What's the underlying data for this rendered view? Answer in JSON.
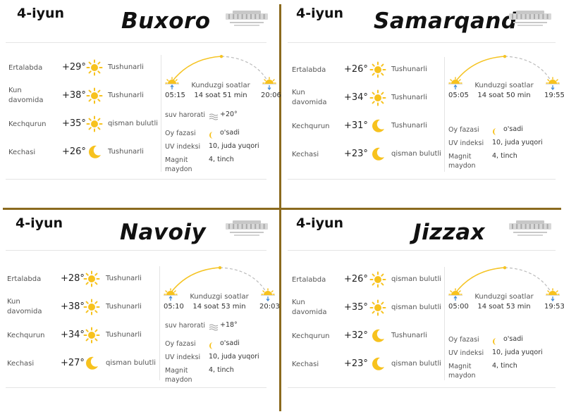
{
  "panels": [
    {
      "date": "4-iyun",
      "city": "Buxoro",
      "rows": [
        {
          "label": "Ertalabda",
          "temp": "+29°",
          "icon": "sun-icon",
          "cond": "Tushunarli"
        },
        {
          "label": "Kun davomida",
          "temp": "+38°",
          "icon": "sun-icon",
          "cond": "Tushunarli"
        },
        {
          "label": "Kechqurun",
          "temp": "+35°",
          "icon": "sun-icon",
          "cond": "qisman bulutli"
        },
        {
          "label": "Kechasi",
          "temp": "+26°",
          "icon": "moon-icon",
          "cond": "Tushunarli"
        }
      ],
      "sun": {
        "rise": "05:15",
        "set": "20:06",
        "daylight_label": "Kunduzgi soatlar",
        "daylight": "14 soat 51 min"
      },
      "info": [
        {
          "key": "suv harorati",
          "value": "+20°",
          "icon": "water-icon"
        },
        {
          "key": "Oy fazasi",
          "value": "o'sadi",
          "icon": "moon-phase-icon"
        },
        {
          "key": "UV indeksi",
          "value": "10, juda yuqori"
        },
        {
          "key": "Magnit maydon",
          "value": "4, tinch"
        }
      ]
    },
    {
      "date": "4-iyun",
      "city": "Samarqand",
      "rows": [
        {
          "label": "Ertalabda",
          "temp": "+26°",
          "icon": "sun-icon",
          "cond": "Tushunarli"
        },
        {
          "label": "Kun davomida",
          "temp": "+34°",
          "icon": "sun-icon",
          "cond": "Tushunarli"
        },
        {
          "label": "Kechqurun",
          "temp": "+31°",
          "icon": "moon-icon",
          "cond": "Tushunarli"
        },
        {
          "label": "Kechasi",
          "temp": "+23°",
          "icon": "moon-icon",
          "cond": "qisman bulutli"
        }
      ],
      "sun": {
        "rise": "05:05",
        "set": "19:55",
        "daylight_label": "Kunduzgi soatlar",
        "daylight": "14 soat 50 min"
      },
      "info": [
        {
          "key": "Oy fazasi",
          "value": "o'sadi",
          "icon": "moon-phase-icon"
        },
        {
          "key": "UV indeksi",
          "value": "10, juda yuqori"
        },
        {
          "key": "Magnit maydon",
          "value": "4, tinch"
        }
      ]
    },
    {
      "date": "4-iyun",
      "city": "Navoiy",
      "rows": [
        {
          "label": "Ertalabda",
          "temp": "+28°",
          "icon": "sun-icon",
          "cond": "Tushunarli"
        },
        {
          "label": "Kun davomida",
          "temp": "+38°",
          "icon": "sun-icon",
          "cond": "Tushunarli"
        },
        {
          "label": "Kechqurun",
          "temp": "+34°",
          "icon": "sun-icon",
          "cond": "Tushunarli"
        },
        {
          "label": "Kechasi",
          "temp": "+27°",
          "icon": "moon-icon",
          "cond": "qisman bulutli"
        }
      ],
      "sun": {
        "rise": "05:10",
        "set": "20:03",
        "daylight_label": "Kunduzgi soatlar",
        "daylight": "14 soat 53 min"
      },
      "info": [
        {
          "key": "suv harorati",
          "value": "+18°",
          "icon": "water-icon"
        },
        {
          "key": "Oy fazasi",
          "value": "o'sadi",
          "icon": "moon-phase-icon"
        },
        {
          "key": "UV indeksi",
          "value": "10, juda yuqori"
        },
        {
          "key": "Magnit maydon",
          "value": "4, tinch"
        }
      ]
    },
    {
      "date": "4-iyun",
      "city": "Jizzax",
      "rows": [
        {
          "label": "Ertalabda",
          "temp": "+26°",
          "icon": "sun-icon",
          "cond": "qisman bulutli"
        },
        {
          "label": "Kun davomida",
          "temp": "+35°",
          "icon": "sun-icon",
          "cond": "qisman bulutli"
        },
        {
          "label": "Kechqurun",
          "temp": "+32°",
          "icon": "moon-icon",
          "cond": "Tushunarli"
        },
        {
          "label": "Kechasi",
          "temp": "+23°",
          "icon": "moon-icon",
          "cond": "qisman bulutli"
        }
      ],
      "sun": {
        "rise": "05:00",
        "set": "19:53",
        "daylight_label": "Kunduzgi soatlar",
        "daylight": "14 soat 53 min"
      },
      "info": [
        {
          "key": "Oy fazasi",
          "value": "o'sadi",
          "icon": "moon-phase-icon"
        },
        {
          "key": "UV indeksi",
          "value": "10, juda yuqori"
        },
        {
          "key": "Magnit maydon",
          "value": "4, tinch"
        }
      ]
    }
  ],
  "colors": {
    "sun": "#f7c21e",
    "divider": "#8b6a1e",
    "arc": "#f5c424",
    "arc_dashed": "#bbbbbb",
    "sunrise_arrow": "#4a90d9"
  }
}
